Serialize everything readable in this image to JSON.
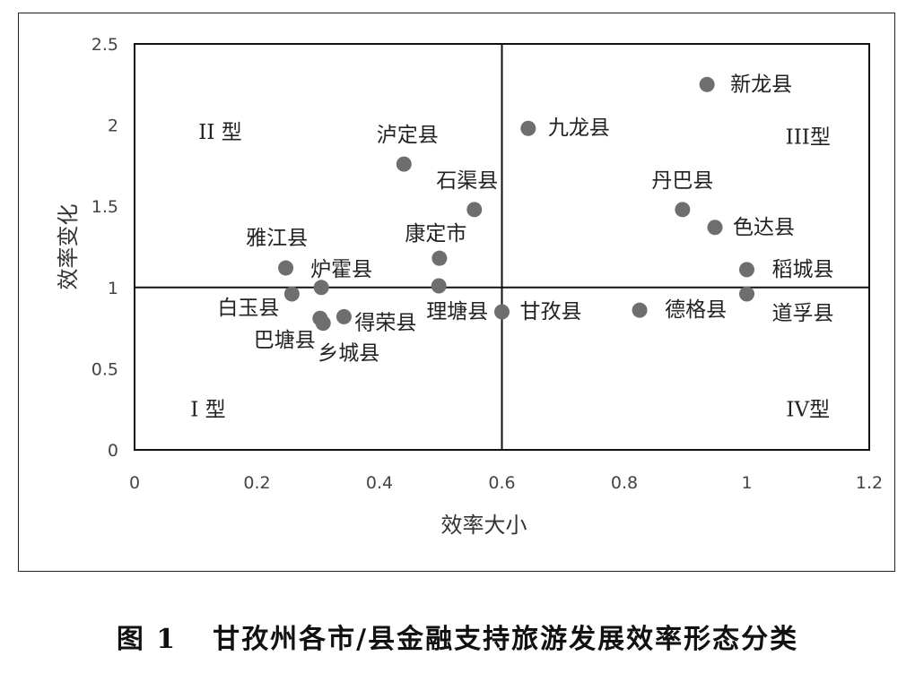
{
  "caption": {
    "number": "图 1",
    "text": "甘孜州各市/县金融支持旅游发展效率形态分类"
  },
  "chart_data": {
    "type": "scatter",
    "title": "",
    "xlabel": "效率大小",
    "ylabel": "效率变化",
    "xlim": [
      0,
      1.2
    ],
    "ylim": [
      0,
      2.5
    ],
    "xticks": [
      "0",
      "0.2",
      "0.4",
      "0.6",
      "0.8",
      "1",
      "1.2"
    ],
    "yticks": [
      "0",
      "0.5",
      "1",
      "1.5",
      "2",
      "2.5"
    ],
    "divider_x": 0.6,
    "divider_y": 1,
    "grid": false,
    "legend": "none",
    "marker_color": "#6e6e6e",
    "quadrants": [
      {
        "label": "II 型",
        "x": 0.14,
        "y": 1.96
      },
      {
        "label": "III型",
        "x": 1.1,
        "y": 1.93
      },
      {
        "label": "I 型",
        "x": 0.12,
        "y": 0.25
      },
      {
        "label": "IV型",
        "x": 1.1,
        "y": 0.25
      }
    ],
    "points": [
      {
        "name": "新龙县",
        "x": 0.935,
        "y": 2.25
      },
      {
        "name": "九龙县",
        "x": 0.643,
        "y": 1.98
      },
      {
        "name": "泸定县",
        "x": 0.44,
        "y": 1.76
      },
      {
        "name": "石渠县",
        "x": 0.555,
        "y": 1.48
      },
      {
        "name": "丹巴县",
        "x": 0.895,
        "y": 1.48
      },
      {
        "name": "色达县",
        "x": 0.948,
        "y": 1.37
      },
      {
        "name": "康定市",
        "x": 0.498,
        "y": 1.18
      },
      {
        "name": "雅江县",
        "x": 0.247,
        "y": 1.12
      },
      {
        "name": "稻城县",
        "x": 1.0,
        "y": 1.11
      },
      {
        "name": "炉霍县",
        "x": 0.305,
        "y": 1.0
      },
      {
        "name": "理塘县",
        "x": 0.497,
        "y": 1.01
      },
      {
        "name": "道孚县",
        "x": 1.0,
        "y": 0.96
      },
      {
        "name": "白玉县",
        "x": 0.257,
        "y": 0.96
      },
      {
        "name": "德格县",
        "x": 0.825,
        "y": 0.86
      },
      {
        "name": "甘孜县",
        "x": 0.6,
        "y": 0.85
      },
      {
        "name": "得荣县",
        "x": 0.342,
        "y": 0.82
      },
      {
        "name": "巴塘县",
        "x": 0.303,
        "y": 0.81
      },
      {
        "name": "乡城县",
        "x": 0.308,
        "y": 0.78
      }
    ]
  }
}
